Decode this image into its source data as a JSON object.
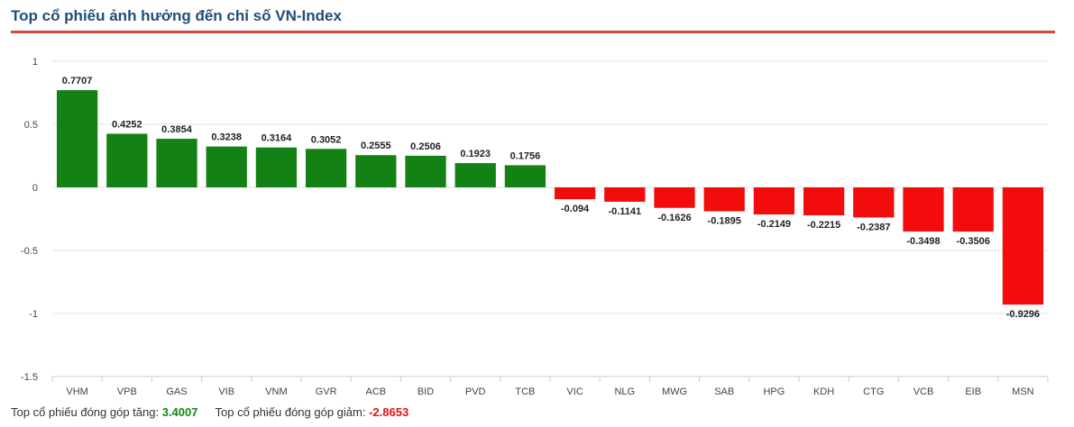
{
  "header": {
    "title": "Top cổ phiếu ảnh hưởng đến chỉ số VN-Index"
  },
  "footer": {
    "up_label": "Top cổ phiếu đóng góp tăng:",
    "up_value": "3.4007",
    "down_label": "Top cổ phiếu đóng góp giảm:",
    "down_value": "-2.8653"
  },
  "colors": {
    "positive": "#138113",
    "negative": "#f20c0c",
    "title": "#1f4e79",
    "rule": "#d9453d"
  },
  "chart_data": {
    "type": "bar",
    "title": "Top cổ phiếu ảnh hưởng đến chỉ số VN-Index",
    "xlabel": "",
    "ylabel": "",
    "ylim": [
      -1.5,
      1
    ],
    "yticks": [
      1,
      0.5,
      0,
      -0.5,
      -1,
      -1.5
    ],
    "ytick_labels": [
      "1",
      "0.5",
      "0",
      "-0.5",
      "-1",
      "-1.5"
    ],
    "grid": true,
    "categories": [
      "VHM",
      "VPB",
      "GAS",
      "VIB",
      "VNM",
      "GVR",
      "ACB",
      "BID",
      "PVD",
      "TCB",
      "VIC",
      "NLG",
      "MWG",
      "SAB",
      "HPG",
      "KDH",
      "CTG",
      "VCB",
      "EIB",
      "MSN"
    ],
    "values": [
      0.7707,
      0.4252,
      0.3854,
      0.3238,
      0.3164,
      0.3052,
      0.2555,
      0.2506,
      0.1923,
      0.1756,
      -0.094,
      -0.1141,
      -0.1626,
      -0.1895,
      -0.2149,
      -0.2215,
      -0.2387,
      -0.3498,
      -0.3506,
      -0.9296
    ],
    "value_labels": [
      "0.7707",
      "0.4252",
      "0.3854",
      "0.3238",
      "0.3164",
      "0.3052",
      "0.2555",
      "0.2506",
      "0.1923",
      "0.1756",
      "-0.094",
      "-0.1141",
      "-0.1626",
      "-0.1895",
      "-0.2149",
      "-0.2215",
      "-0.2387",
      "-0.3498",
      "-0.3506",
      "-0.9296"
    ]
  }
}
